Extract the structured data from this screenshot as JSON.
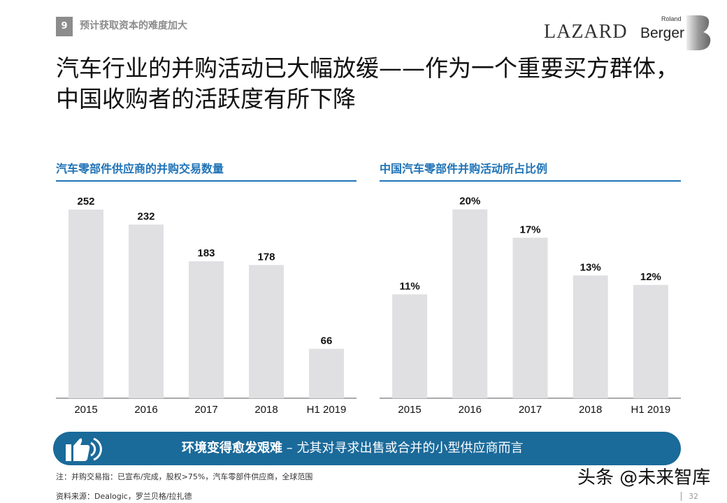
{
  "header": {
    "section_number": "9",
    "section_title": "预计获取资本的难度加大",
    "logo_lazard": "LAZARD",
    "logo_roland": "Roland",
    "logo_berger": "Berger"
  },
  "title": "汽车行业的并购活动已大幅放缓——作为一个重要买方群体，中国收购者的活跃度有所下降",
  "colors": {
    "accent": "#1f73b7",
    "bar": "#e0e0e3",
    "banner": "#1a6a9a"
  },
  "chart_data": [
    {
      "type": "bar",
      "title": "汽车零部件供应商的并购交易数量",
      "categories": [
        "2015",
        "2016",
        "2017",
        "2018",
        "H1 2019"
      ],
      "values": [
        252,
        232,
        183,
        178,
        66
      ],
      "labels": [
        "252",
        "232",
        "183",
        "178",
        "66"
      ],
      "ylim": [
        0,
        280
      ],
      "grid": false
    },
    {
      "type": "bar",
      "title": "中国汽车零部件并购活动所占比例",
      "categories": [
        "2015",
        "2016",
        "2017",
        "2018",
        "H1 2019"
      ],
      "values": [
        11,
        20,
        17,
        13,
        12
      ],
      "labels": [
        "11%",
        "20%",
        "17%",
        "13%",
        "12%"
      ],
      "ylim": [
        0,
        22.2
      ],
      "grid": false
    }
  ],
  "banner": {
    "icon": "thumbs-up-icon",
    "bold": "环境变得愈发艰难",
    "rest": "– 尤其对寻求出售或合并的小型供应商而言"
  },
  "footer": {
    "note": "注：并购交易指：已宣布/完成，股权>75%，汽车零部件供应商，全球范围",
    "source": "资料来源：Dealogic，罗兰贝格/拉扎德",
    "watermark": "头条 @未来智库",
    "page": "32"
  }
}
